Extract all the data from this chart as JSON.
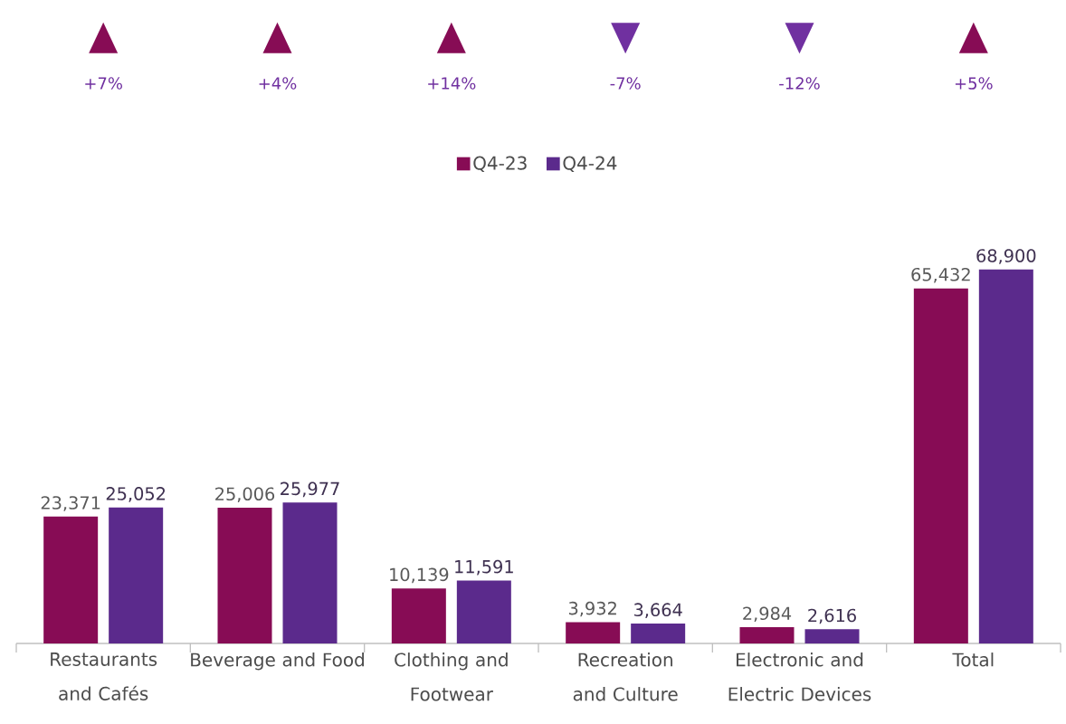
{
  "chart_data": {
    "type": "bar",
    "categories": [
      "Restaurants and Cafés",
      "Beverage and Food",
      "Clothing and Footwear",
      "Recreation and Culture",
      "Electronic and Electric Devices",
      "Total"
    ],
    "series": [
      {
        "name": "Q4-23",
        "color": "#870c55",
        "values": [
          23371,
          25006,
          10139,
          3932,
          2984,
          65432
        ],
        "value_labels": [
          "23,371",
          "25,006",
          "10,139",
          "3,932",
          "2,984",
          "65,432"
        ]
      },
      {
        "name": "Q4-24",
        "color": "#5b2a8c",
        "values": [
          25052,
          25977,
          11591,
          3664,
          2616,
          68900
        ],
        "value_labels": [
          "25,052",
          "25,977",
          "11,591",
          "3,664",
          "2,616",
          "68,900"
        ]
      }
    ],
    "legend": "top",
    "annotations": [
      "+7%",
      "+4%",
      "+14%",
      "-7%",
      "-12%",
      "+5%"
    ]
  }
}
